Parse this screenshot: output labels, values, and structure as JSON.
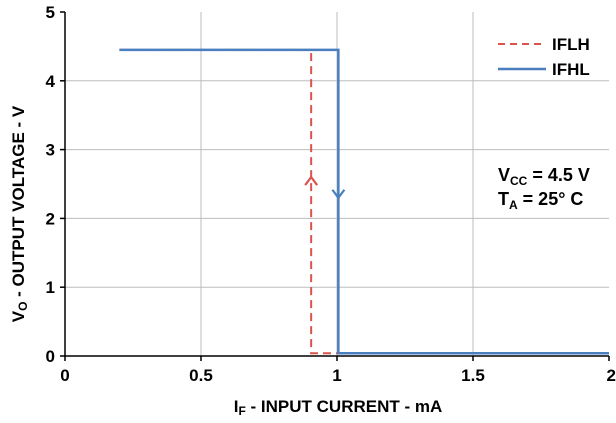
{
  "chart_data": {
    "type": "line",
    "xlabel": {
      "main": "I",
      "sub": "F",
      "rest": " - INPUT CURRENT - mA"
    },
    "ylabel": {
      "main": "V",
      "sub": "O",
      "rest": " - OUTPUT VOLTAGE - V"
    },
    "xlim": [
      0,
      2
    ],
    "ylim": [
      0,
      5
    ],
    "xticks": [
      "0",
      "0.5",
      "1",
      "1.5",
      "2"
    ],
    "yticks": [
      "0",
      "1",
      "2",
      "3",
      "4",
      "5"
    ],
    "grid": true,
    "legend_position": "top-right",
    "series": [
      {
        "name": "IFLH",
        "color": "#d9534f",
        "style": "dashed",
        "x": [
          0.2,
          0.905,
          0.905,
          1.0
        ],
        "y": [
          4.45,
          4.45,
          0.04,
          0.04
        ],
        "arrow": {
          "x": 0.905,
          "y": 2.6,
          "direction": "up"
        }
      },
      {
        "name": "IFHL",
        "color": "#4a7fbf",
        "style": "solid",
        "x": [
          0.2,
          1.005,
          1.005,
          2.0
        ],
        "y": [
          4.45,
          4.45,
          0.04,
          0.04
        ],
        "arrow": {
          "x": 1.005,
          "y": 2.3,
          "direction": "down"
        }
      }
    ],
    "annotations": [
      {
        "main": "V",
        "sub": "CC",
        "rest": " = 4.5 V"
      },
      {
        "main": "T",
        "sub": "A",
        "rest": " = 25° C"
      }
    ]
  }
}
